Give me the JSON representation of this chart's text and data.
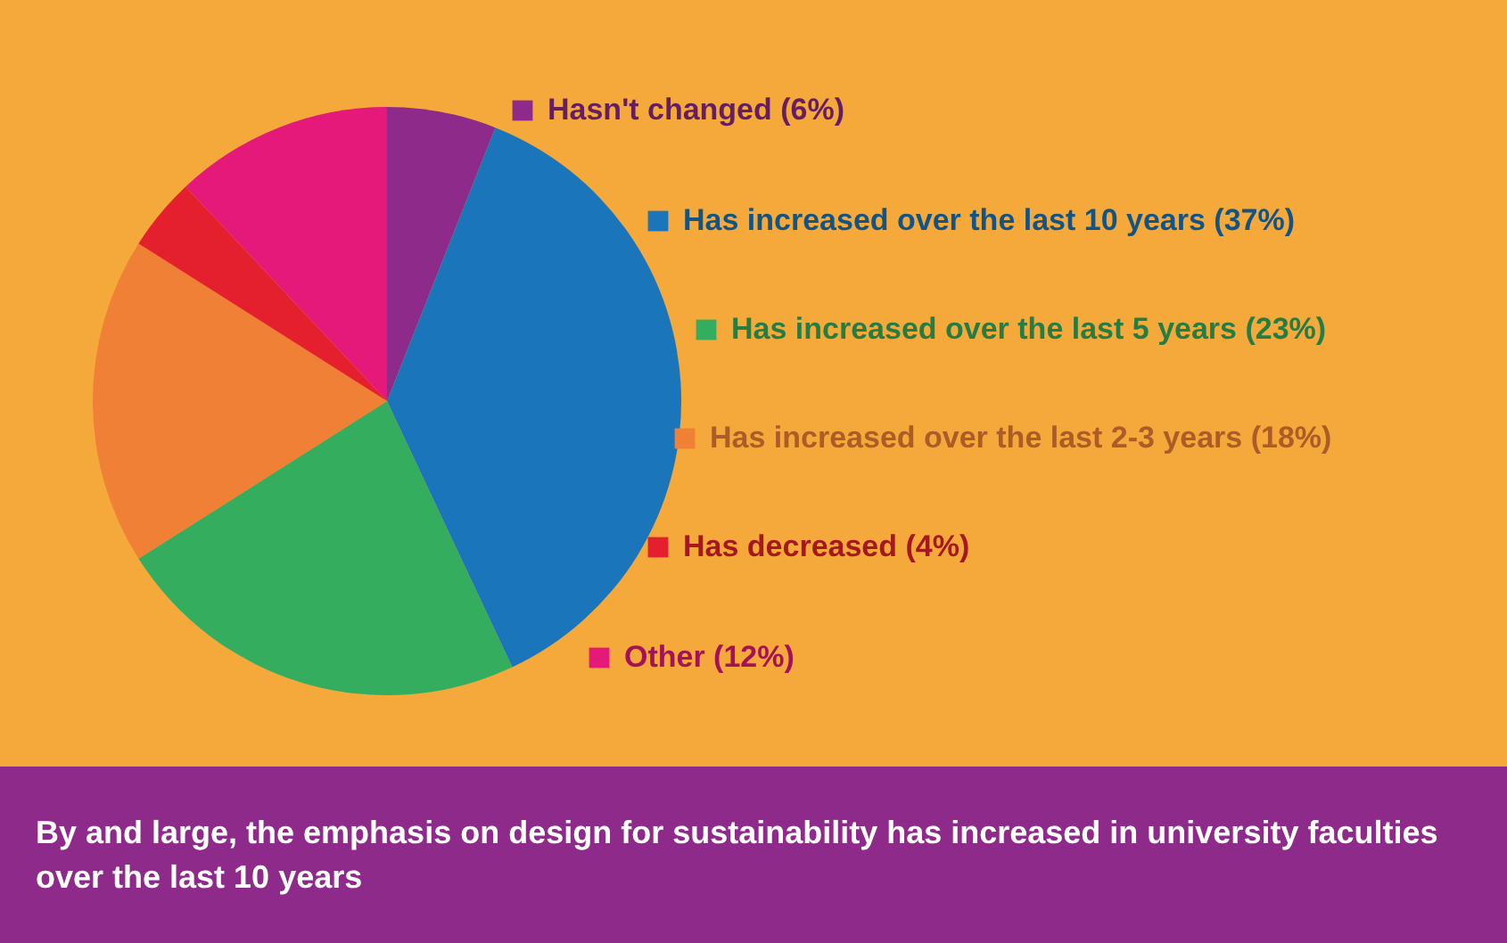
{
  "chart_data": {
    "type": "pie",
    "categories": [
      "Hasn't changed (6%)",
      "Has increased over the last 10 years (37%)",
      "Has increased over the last 5 years (23%)",
      "Has increased over the last 2-3 years (18%)",
      "Has decreased (4%)",
      "Other (12%)"
    ],
    "values": [
      6,
      37,
      23,
      18,
      4,
      12
    ],
    "legend": "right",
    "colors": [
      "#8e2a8a",
      "#1a75bb",
      "#35ad5f",
      "#ef8035",
      "#e5202e",
      "#e4197a"
    ],
    "annotations": [
      "By and large, the emphasis on design for sustainability has increased in university faculties over the last 10 years"
    ]
  }
}
